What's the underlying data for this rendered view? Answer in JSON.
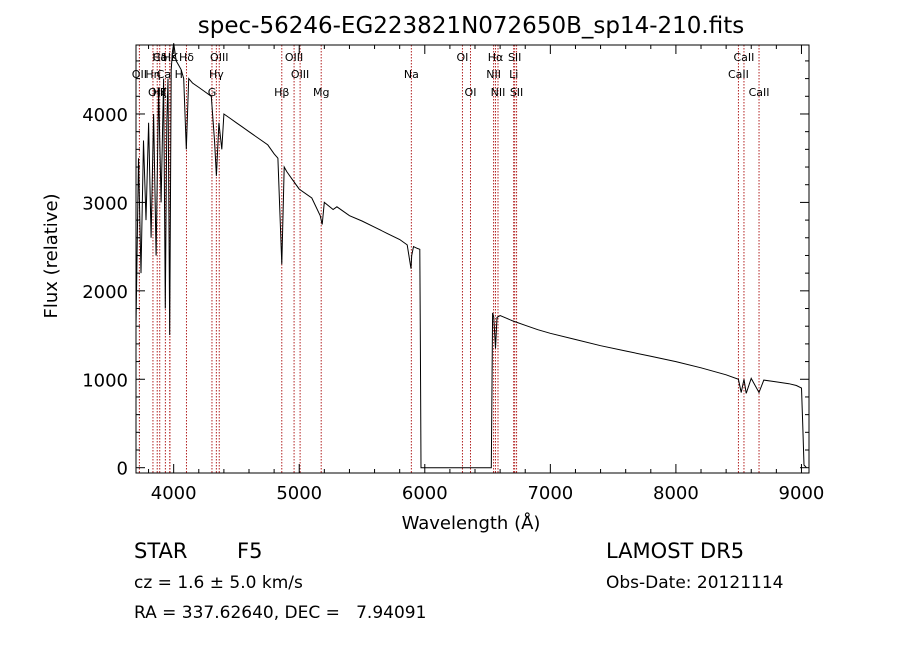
{
  "chart_data": {
    "type": "line",
    "title": "spec-56246-EG223821N072650B_sp14-210.fits",
    "xlabel": "Wavelength (Å)",
    "ylabel": "Flux (relative)",
    "xlim": [
      3700,
      9060
    ],
    "ylim": [
      -60,
      4780
    ],
    "xticks": [
      4000,
      5000,
      6000,
      7000,
      8000,
      9000
    ],
    "yticks": [
      0,
      1000,
      2000,
      3000,
      4000
    ],
    "grid": false,
    "series": [
      {
        "x": [
          3700,
          3720,
          3740,
          3760,
          3780,
          3800,
          3820,
          3840,
          3860,
          3880,
          3900,
          3920,
          3933,
          3945,
          3955,
          3968,
          3980,
          3990,
          4000,
          4020,
          4040,
          4060,
          4080,
          4101,
          4120,
          4150,
          4200,
          4250,
          4300,
          4325,
          4340,
          4360,
          4383,
          4400,
          4450,
          4500,
          4550,
          4600,
          4650,
          4700,
          4750,
          4800,
          4830,
          4861,
          4880,
          4900,
          4950,
          5000,
          5100,
          5167,
          5183,
          5200,
          5270,
          5300,
          5400,
          5500,
          5600,
          5700,
          5800,
          5860,
          5890,
          5896,
          5910,
          5940,
          5960,
          5965,
          5970,
          5980,
          6000,
          6100,
          6200,
          6300,
          6400,
          6500,
          6520,
          6530,
          6540,
          6550,
          6563,
          6575,
          6600,
          6650,
          6700,
          6800,
          6900,
          7000,
          7200,
          7400,
          7600,
          7800,
          8000,
          8200,
          8400,
          8498,
          8520,
          8542,
          8560,
          8600,
          8662,
          8700,
          8800,
          8900,
          8960,
          9000,
          9010,
          9020,
          9040
        ],
        "y": [
          1600,
          3500,
          2200,
          3700,
          2800,
          3900,
          2600,
          4000,
          2400,
          4300,
          3000,
          4400,
          1800,
          3900,
          4400,
          1500,
          4500,
          4700,
          4800,
          4600,
          4550,
          4500,
          4400,
          3600,
          4400,
          4350,
          4300,
          4250,
          4200,
          3700,
          3300,
          3900,
          3600,
          4000,
          3950,
          3900,
          3850,
          3800,
          3750,
          3700,
          3650,
          3550,
          3500,
          2300,
          3400,
          3350,
          3250,
          3150,
          3050,
          2850,
          2750,
          3000,
          2920,
          2950,
          2850,
          2790,
          2720,
          2650,
          2580,
          2520,
          2250,
          2400,
          2500,
          2480,
          2470,
          1350,
          0,
          0,
          0,
          0,
          0,
          0,
          0,
          0,
          0,
          0,
          1750,
          1700,
          1350,
          1700,
          1720,
          1690,
          1660,
          1610,
          1560,
          1520,
          1450,
          1380,
          1320,
          1260,
          1200,
          1130,
          1050,
          1000,
          850,
          1000,
          840,
          1010,
          850,
          990,
          970,
          950,
          930,
          900,
          500,
          30,
          0
        ]
      }
    ],
    "lines": {
      "color": "#b22222",
      "row1": [
        {
          "label": "Hδ",
          "wave": 3889
        },
        {
          "label": "Ca K",
          "wave": 3934
        },
        {
          "label": "Hε",
          "wave": 3970
        },
        {
          "label": "Hδ",
          "wave": 4102
        },
        {
          "label": "OIII",
          "wave": 4363
        },
        {
          "label": "OIII",
          "wave": 4959
        },
        {
          "label": "OI",
          "wave": 6300
        },
        {
          "label": "Hα",
          "wave": 6563
        },
        {
          "label": "SII",
          "wave": 6716
        },
        {
          "label": "CaII",
          "wave": 8542
        }
      ],
      "row2": [
        {
          "label": "OII",
          "wave": 3727
        },
        {
          "label": "Hη",
          "wave": 3835
        },
        {
          "label": "Ca H",
          "wave": 3969
        },
        {
          "label": "Hγ",
          "wave": 4340
        },
        {
          "label": "OIII",
          "wave": 5007
        },
        {
          "label": "Na",
          "wave": 5893
        },
        {
          "label": "NII",
          "wave": 6548
        },
        {
          "label": "Li",
          "wave": 6708
        },
        {
          "label": "CaII",
          "wave": 8498
        }
      ],
      "row3": [
        {
          "label": "OIII",
          "wave": 3869
        },
        {
          "label": "Hζ",
          "wave": 3889
        },
        {
          "label": "G",
          "wave": 4305
        },
        {
          "label": "Hβ",
          "wave": 4861
        },
        {
          "label": "Mg",
          "wave": 5175
        },
        {
          "label": "OI",
          "wave": 6364
        },
        {
          "label": "NII",
          "wave": 6583
        },
        {
          "label": "SII",
          "wave": 6731
        },
        {
          "label": "CaII",
          "wave": 8662
        }
      ]
    }
  },
  "info": {
    "class_label": "STAR",
    "subclass": "F5",
    "survey": "LAMOST DR5",
    "redshift": "cz = 1.6 ± 5.0 km/s",
    "obs_date": "Obs-Date: 20121114",
    "coords": "RA = 337.62640, DEC =   7.94091"
  }
}
